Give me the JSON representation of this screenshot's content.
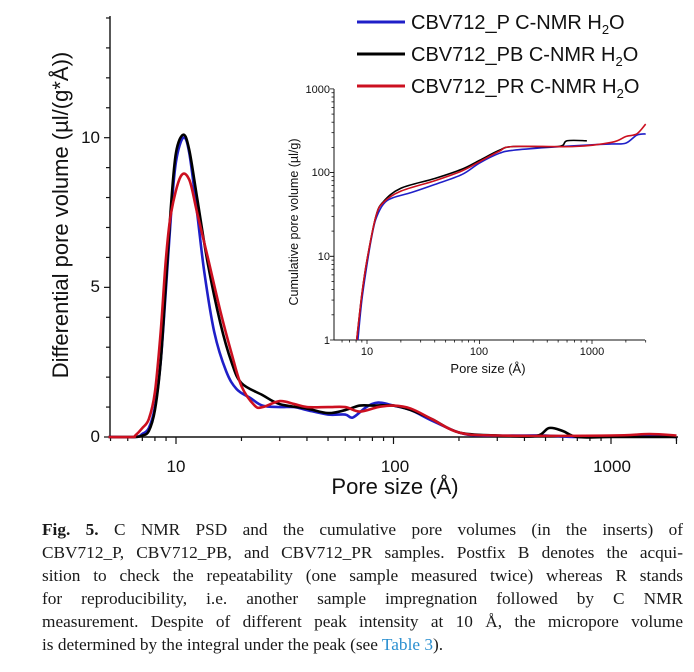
{
  "chart_data": [
    {
      "type": "line",
      "title": "",
      "xlabel": "Pore size (Å)",
      "ylabel": "Differential pore volume (µl/(g*Å))",
      "xscale": "log",
      "yscale": "linear",
      "xlim": [
        4.9,
        2000
      ],
      "ylim": [
        0,
        14
      ],
      "xticks": [
        "10",
        "100",
        "1000"
      ],
      "yticks": [
        "0",
        "5",
        "10"
      ],
      "grid": false,
      "legend": "top-right",
      "series": [
        {
          "name": "CBV712_P C-NMR H2O",
          "color": "#1f1fc8",
          "x": [
            4.9,
            6.5,
            7,
            7.5,
            8,
            8.5,
            9,
            9.5,
            10,
            10.8,
            11.5,
            12.5,
            13.5,
            15,
            17,
            19,
            22,
            25,
            30,
            35,
            40,
            50,
            60,
            65,
            75,
            85,
            100,
            120,
            150,
            200,
            250,
            400,
            500,
            700,
            1000,
            1500,
            2000
          ],
          "y": [
            0,
            0,
            0.1,
            0.3,
            1.0,
            2.5,
            5,
            7.5,
            9.2,
            10.0,
            9.5,
            7.5,
            5.5,
            3.5,
            2.2,
            1.6,
            1.3,
            1.05,
            1.0,
            1.0,
            0.9,
            0.75,
            0.75,
            0.65,
            1.0,
            1.15,
            1.05,
            0.9,
            0.55,
            0.15,
            0.05,
            0.05,
            0.05,
            0,
            0.02,
            0.05,
            0
          ]
        },
        {
          "name": "CBV712_PB C-NMR H2O",
          "color": "#000000",
          "x": [
            4.9,
            6.5,
            7,
            7.5,
            8,
            8.5,
            9,
            9.5,
            10,
            10.8,
            11.5,
            12.5,
            14,
            16,
            18,
            20,
            25,
            30,
            40,
            50,
            60,
            70,
            80,
            100,
            120,
            150,
            200,
            300,
            450,
            520,
            600,
            700,
            1000,
            2000
          ],
          "y": [
            0,
            0,
            0.05,
            0.2,
            0.9,
            2.5,
            5.2,
            7.8,
            9.5,
            10.1,
            9.6,
            8,
            5.8,
            3.8,
            2.5,
            1.8,
            1.4,
            1.1,
            0.95,
            0.8,
            0.9,
            1.05,
            1.05,
            1.05,
            0.9,
            0.6,
            0.15,
            0.05,
            0.03,
            0.3,
            0.2,
            0,
            0,
            0
          ]
        },
        {
          "name": "CBV712_PR C-NMR H2O",
          "color": "#cc1020",
          "x": [
            4.9,
            6.3,
            6.5,
            7,
            7.5,
            8,
            8.5,
            9,
            9.5,
            10.5,
            11.5,
            12.5,
            14,
            16,
            18,
            20,
            23,
            25,
            30,
            35,
            40,
            50,
            60,
            70,
            85,
            100,
            120,
            150,
            200,
            300,
            1000,
            1500,
            2000
          ],
          "y": [
            0,
            0,
            0.05,
            0.3,
            0.6,
            1.5,
            3.5,
            6,
            7.5,
            8.7,
            8.6,
            7.5,
            6,
            4.2,
            2.8,
            1.7,
            1.05,
            1.0,
            1.2,
            1.1,
            1.0,
            1.0,
            1.0,
            0.85,
            1.0,
            1.05,
            0.95,
            0.6,
            0.15,
            0.05,
            0.05,
            0.1,
            0.05
          ]
        }
      ]
    },
    {
      "type": "line",
      "title": "",
      "xlabel": "Pore size (Å)",
      "ylabel": "Cumulative pore volume (µl/g)",
      "xscale": "log",
      "yscale": "log",
      "xlim": [
        5.1,
        3000
      ],
      "ylim": [
        1,
        1000
      ],
      "xticks": [
        "10",
        "100",
        "1000"
      ],
      "yticks": [
        "1",
        "10",
        "100",
        "1000"
      ],
      "grid": false,
      "series": [
        {
          "name": "CBV712_P C-NMR H2O",
          "color": "#1f1fc8",
          "x": [
            8.3,
            9,
            10,
            11,
            12,
            14,
            17,
            25,
            40,
            70,
            100,
            150,
            200,
            400,
            1000,
            1500,
            2000,
            2500,
            3000
          ],
          "y": [
            1,
            3,
            8,
            17,
            28,
            42,
            50,
            58,
            72,
            95,
            130,
            170,
            185,
            200,
            215,
            220,
            225,
            280,
            290
          ]
        },
        {
          "name": "CBV712_PB C-NMR H2O",
          "color": "#000000",
          "x": [
            8.1,
            9,
            10,
            12,
            14,
            20,
            40,
            70,
            100,
            150,
            200,
            500,
            600,
            900
          ],
          "y": [
            1,
            3.5,
            9,
            30,
            45,
            65,
            85,
            110,
            140,
            185,
            205,
            205,
            240,
            240
          ]
        },
        {
          "name": "CBV712_PR C-NMR H2O",
          "color": "#cc1020",
          "x": [
            8.1,
            9,
            10,
            12,
            14,
            20,
            40,
            70,
            100,
            150,
            200,
            700,
            1500,
            2000,
            2500,
            3000
          ],
          "y": [
            1,
            3.5,
            9,
            30,
            44,
            60,
            80,
            105,
            135,
            180,
            205,
            205,
            230,
            270,
            290,
            380
          ]
        }
      ]
    }
  ],
  "legend": {
    "items": [
      {
        "prefix": "CBV712_P C-NMR H",
        "sub": "2",
        "suffix": "O",
        "color": "#1f1fc8"
      },
      {
        "prefix": "CBV712_PB C-NMR H",
        "sub": "2",
        "suffix": "O",
        "color": "#000000"
      },
      {
        "prefix": "CBV712_PR C-NMR H",
        "sub": "2",
        "suffix": "O",
        "color": "#cc1020"
      }
    ]
  },
  "caption": {
    "label": "Fig. 5.",
    "first_line": " C NMR PSD and the cumulative pore volumes (in the inserts) of",
    "lines": [
      "CBV712_P, CBV712_PB, and CBV712_PR samples. Postfix B denotes the acqui-",
      "sition to check the repeatability (one sample measured twice) whereas R stands",
      "for reproducibility, i.e. another sample impregnation followed by C NMR",
      "measurement. Despite of different peak intensity at 10 Å, the micropore volume"
    ],
    "last_prefix": "is determined by the integral under the peak (see ",
    "link": "Table 3",
    "last_suffix": ")."
  }
}
